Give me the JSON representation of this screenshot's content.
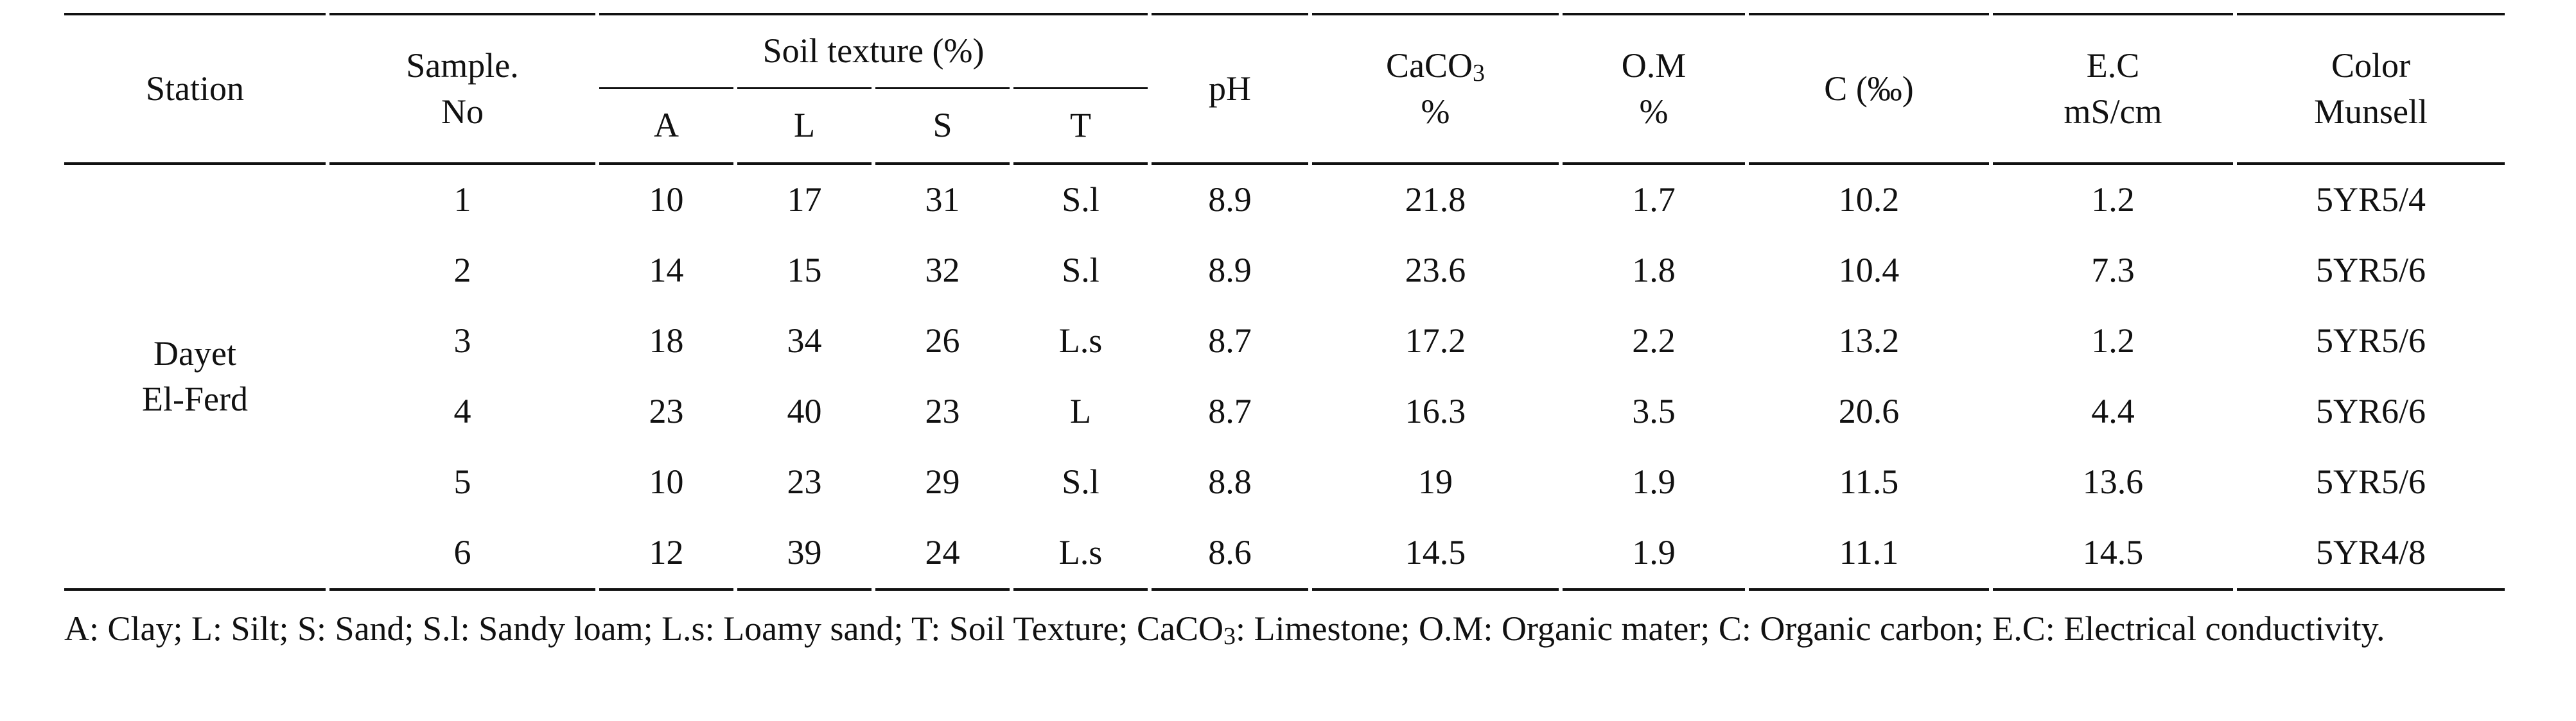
{
  "headers": {
    "station": "Station",
    "sample_line1": "Sample.",
    "sample_line2": "No",
    "soil_texture": "Soil texture (%)",
    "sub": [
      "A",
      "L",
      "S",
      "T"
    ],
    "ph": "pH",
    "caco3_prefix": "CaCO",
    "caco3_sub": "3",
    "caco3_unit": "%",
    "om": "O.M",
    "om_unit": "%",
    "c": "C (‰)",
    "ec": "E.C",
    "ec_unit": "mS/cm",
    "color_line1": "Color",
    "color_line2": "Munsell"
  },
  "station": {
    "line1": "Dayet",
    "line2": "El-Ferd"
  },
  "rows": [
    {
      "no": "1",
      "a": "10",
      "l": "17",
      "s": "31",
      "t": "S.l",
      "ph": "8.9",
      "caco3": "21.8",
      "om": "1.7",
      "c": "10.2",
      "ec": "1.2",
      "color": "5YR5/4"
    },
    {
      "no": "2",
      "a": "14",
      "l": "15",
      "s": "32",
      "t": "S.l",
      "ph": "8.9",
      "caco3": "23.6",
      "om": "1.8",
      "c": "10.4",
      "ec": "7.3",
      "color": "5YR5/6"
    },
    {
      "no": "3",
      "a": "18",
      "l": "34",
      "s": "26",
      "t": "L.s",
      "ph": "8.7",
      "caco3": "17.2",
      "om": "2.2",
      "c": "13.2",
      "ec": "1.2",
      "color": "5YR5/6"
    },
    {
      "no": "4",
      "a": "23",
      "l": "40",
      "s": "23",
      "t": "L",
      "ph": "8.7",
      "caco3": "16.3",
      "om": "3.5",
      "c": "20.6",
      "ec": "4.4",
      "color": "5YR6/6"
    },
    {
      "no": "5",
      "a": "10",
      "l": "23",
      "s": "29",
      "t": "S.l",
      "ph": "8.8",
      "caco3": "19",
      "om": "1.9",
      "c": "11.5",
      "ec": "13.6",
      "color": "5YR5/6"
    },
    {
      "no": "6",
      "a": "12",
      "l": "39",
      "s": "24",
      "t": "L.s",
      "ph": "8.6",
      "caco3": "14.5",
      "om": "1.9",
      "c": "11.1",
      "ec": "14.5",
      "color": "5YR4/8"
    }
  ],
  "footnote": {
    "part1": "A: Clay; L: Silt; S: Sand; S.l: Sandy loam; L.s: Loamy sand; T: Soil Texture; CaCO",
    "sub": "3",
    "part2": ": Limestone; O.M: Organic mater; C: Organic carbon; E.C: Electrical conductivity."
  }
}
